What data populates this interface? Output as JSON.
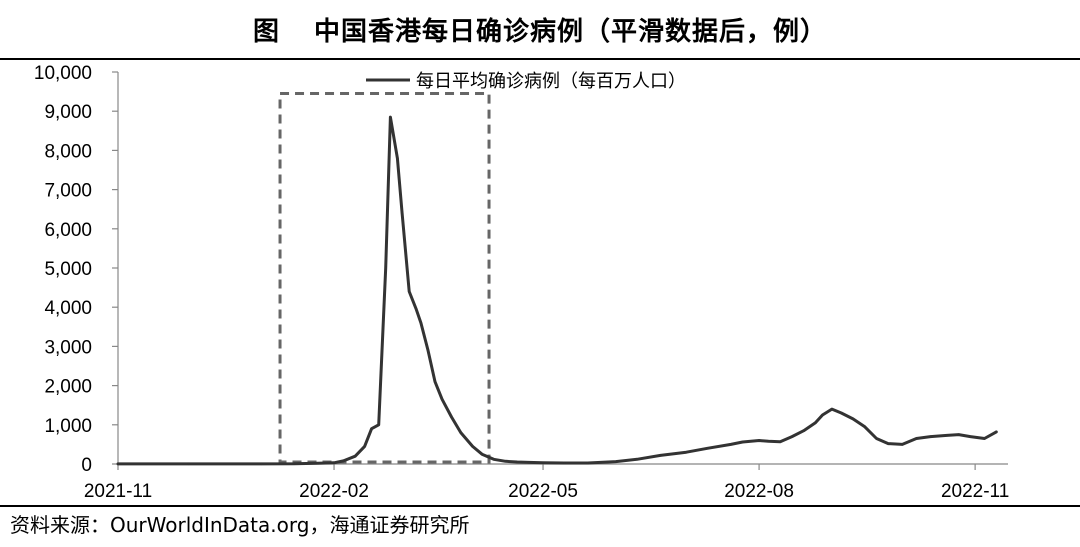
{
  "title": {
    "label": "图",
    "text": "中国香港每日确诊病例（平滑数据后，例）"
  },
  "source": "资料来源：OurWorldInData.org，海通证券研究所",
  "chart_data": {
    "type": "line",
    "title": "中国香港每日确诊病例（平滑数据后，例）",
    "xlabel": "",
    "ylabel": "",
    "ylim": [
      0,
      10000
    ],
    "yticks": [
      0,
      1000,
      2000,
      3000,
      4000,
      5000,
      6000,
      7000,
      8000,
      9000,
      10000
    ],
    "ytick_labels": [
      "0",
      "1,000",
      "2,000",
      "3,000",
      "4,000",
      "5,000",
      "6,000",
      "7,000",
      "8,000",
      "9,000",
      "10,000"
    ],
    "xlim": [
      "2021-11-01",
      "2022-11-15"
    ],
    "xticks": [
      "2021-11-01",
      "2022-02-01",
      "2022-05-01",
      "2022-08-01",
      "2022-11-01"
    ],
    "xtick_labels": [
      "2021-11",
      "2022-02",
      "2022-05",
      "2022-08",
      "2022-11"
    ],
    "grid": false,
    "legend_position": "top-center",
    "series": [
      {
        "name": "每日平均确诊病例（每百万人口）",
        "color": "#333333",
        "x": [
          "2021-11-01",
          "2021-12-01",
          "2022-01-01",
          "2022-01-15",
          "2022-01-25",
          "2022-02-01",
          "2022-02-05",
          "2022-02-10",
          "2022-02-14",
          "2022-02-17",
          "2022-02-20",
          "2022-02-23",
          "2022-02-25",
          "2022-02-28",
          "2022-03-02",
          "2022-03-05",
          "2022-03-08",
          "2022-03-10",
          "2022-03-13",
          "2022-03-16",
          "2022-03-19",
          "2022-03-23",
          "2022-03-27",
          "2022-04-01",
          "2022-04-05",
          "2022-04-10",
          "2022-04-15",
          "2022-04-20",
          "2022-04-25",
          "2022-05-01",
          "2022-05-10",
          "2022-05-20",
          "2022-06-01",
          "2022-06-10",
          "2022-06-20",
          "2022-07-01",
          "2022-07-10",
          "2022-07-20",
          "2022-07-25",
          "2022-08-01",
          "2022-08-05",
          "2022-08-10",
          "2022-08-15",
          "2022-08-20",
          "2022-08-25",
          "2022-08-28",
          "2022-09-01",
          "2022-09-05",
          "2022-09-10",
          "2022-09-15",
          "2022-09-20",
          "2022-09-25",
          "2022-10-01",
          "2022-10-07",
          "2022-10-13",
          "2022-10-20",
          "2022-10-25",
          "2022-10-30",
          "2022-11-05",
          "2022-11-10"
        ],
        "y": [
          2,
          2,
          3,
          5,
          20,
          30,
          80,
          200,
          450,
          900,
          1000,
          5000,
          8850,
          7800,
          6400,
          4400,
          3950,
          3600,
          2900,
          2100,
          1650,
          1200,
          800,
          450,
          250,
          120,
          70,
          50,
          40,
          30,
          25,
          25,
          60,
          120,
          220,
          300,
          400,
          500,
          560,
          600,
          580,
          570,
          700,
          850,
          1050,
          1250,
          1400,
          1300,
          1150,
          950,
          650,
          520,
          500,
          650,
          700,
          730,
          750,
          700,
          650,
          820
        ]
      }
    ],
    "annotations": [
      {
        "type": "dashed-box",
        "x": [
          "2022-01-09",
          "2022-04-08"
        ],
        "y": [
          50,
          9450
        ]
      }
    ]
  }
}
